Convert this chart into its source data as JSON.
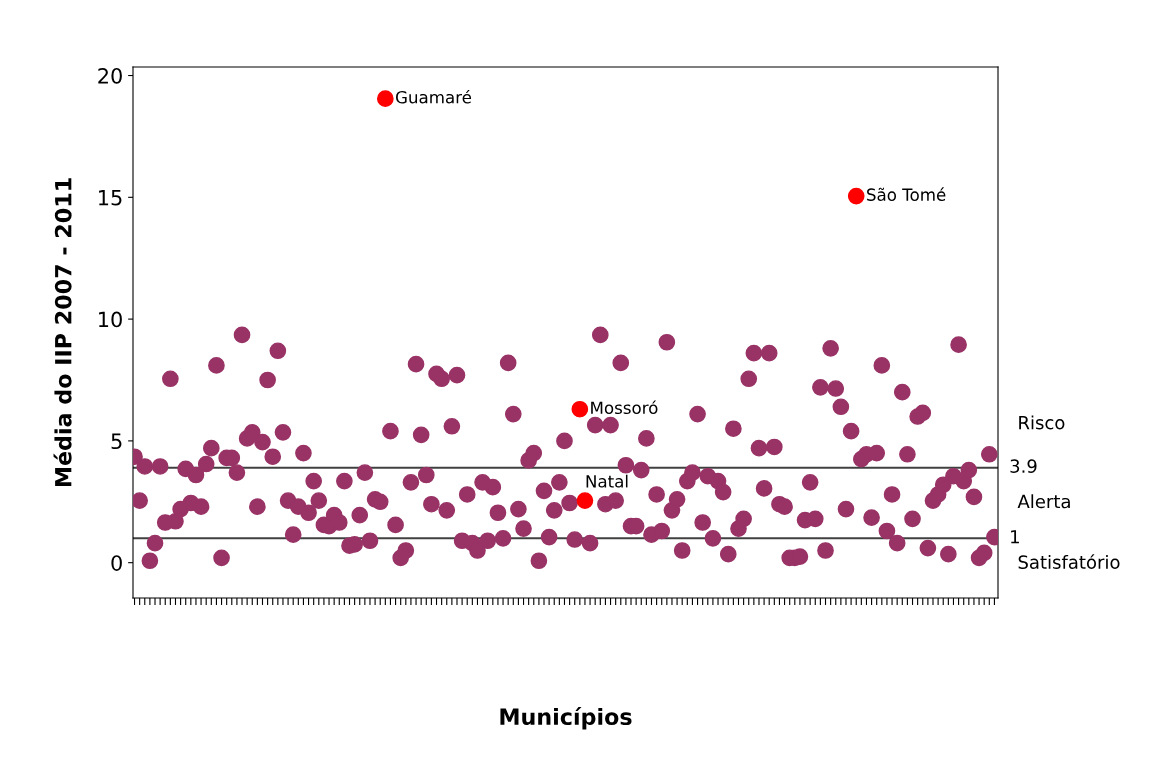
{
  "chart_data": {
    "type": "scatter",
    "xlabel": "Municípios",
    "ylabel": "Média do IIP 2007 - 2011",
    "categories": [
      null,
      null,
      null,
      null,
      null,
      null,
      null,
      null,
      null,
      null,
      null,
      null,
      null,
      null,
      null,
      null,
      null,
      null,
      null,
      null,
      null,
      null,
      null,
      null,
      null,
      null,
      null,
      null,
      null,
      null,
      null,
      null,
      null,
      null,
      null,
      null,
      null,
      null,
      null,
      null,
      null,
      null,
      null,
      null,
      null,
      null,
      null,
      null,
      null,
      null,
      null,
      null,
      null,
      null,
      null,
      null,
      null,
      null,
      null,
      null,
      null,
      null,
      null,
      null,
      null,
      null,
      null,
      null,
      null,
      null,
      null,
      null,
      null,
      null,
      null,
      null,
      null,
      null,
      null,
      null,
      null,
      null,
      null,
      null,
      null,
      null,
      null,
      null,
      null,
      null,
      null,
      null,
      null,
      null,
      null,
      null,
      null,
      null,
      null,
      null,
      null,
      null,
      null,
      null,
      null,
      null,
      null,
      null,
      null,
      null,
      null,
      null,
      null,
      null,
      null,
      null,
      null,
      null,
      null,
      null,
      null,
      null,
      null,
      null,
      null,
      null,
      null,
      null,
      null,
      null,
      null,
      null,
      null,
      null,
      null,
      null,
      null,
      null,
      null,
      null,
      null,
      null,
      null,
      null,
      null,
      null,
      null,
      null,
      null,
      null,
      null,
      null,
      null,
      null,
      null,
      null,
      null,
      null,
      null,
      null,
      null,
      null,
      null,
      null,
      null,
      null,
      null,
      null,
      null
    ],
    "values": [
      4.35,
      2.55,
      3.95,
      0.08,
      0.8,
      3.95,
      1.65,
      7.55,
      1.7,
      2.2,
      3.85,
      2.45,
      3.6,
      2.3,
      4.05,
      4.7,
      8.1,
      0.2,
      4.3,
      4.3,
      3.7,
      9.35,
      5.1,
      5.35,
      2.3,
      4.95,
      7.5,
      4.35,
      8.7,
      5.35,
      2.55,
      1.15,
      2.3,
      4.5,
      2.05,
      3.35,
      2.55,
      1.55,
      1.5,
      1.95,
      1.65,
      3.35,
      0.7,
      0.75,
      1.95,
      3.7,
      0.9,
      2.6,
      2.5,
      19.05,
      5.4,
      1.55,
      0.2,
      0.5,
      3.3,
      8.15,
      5.25,
      3.6,
      2.4,
      7.75,
      7.55,
      2.15,
      5.6,
      7.7,
      0.9,
      2.8,
      0.8,
      0.5,
      3.3,
      0.9,
      3.1,
      2.05,
      1.0,
      8.2,
      6.1,
      2.2,
      1.4,
      4.2,
      4.5,
      0.08,
      2.95,
      1.05,
      2.15,
      3.3,
      5.0,
      2.45,
      0.95,
      6.3,
      2.55,
      0.8,
      5.65,
      9.35,
      2.4,
      5.65,
      2.55,
      8.2,
      4.0,
      1.5,
      1.5,
      3.8,
      5.1,
      1.15,
      2.8,
      1.3,
      9.05,
      2.15,
      2.6,
      0.5,
      3.35,
      3.7,
      6.1,
      1.65,
      3.55,
      1.0,
      3.35,
      2.9,
      0.35,
      5.5,
      1.4,
      1.8,
      7.55,
      8.6,
      4.7,
      3.05,
      8.6,
      4.75,
      2.4,
      2.3,
      0.2,
      0.2,
      0.25,
      1.75,
      3.3,
      1.8,
      7.2,
      0.5,
      8.8,
      7.15,
      6.4,
      2.2,
      5.4,
      15.05,
      4.25,
      4.45,
      1.85,
      4.5,
      8.1,
      1.3,
      2.8,
      0.8,
      7.0,
      4.45,
      1.8,
      6.0,
      6.15,
      0.6,
      2.55,
      2.8,
      3.2,
      0.35,
      3.55,
      8.95,
      3.35,
      3.8,
      2.7,
      0.2,
      0.4,
      4.45,
      1.05
    ],
    "colors": [
      "#993366",
      "#993366",
      "#993366",
      "#993366",
      "#993366",
      "#993366",
      "#993366",
      "#993366",
      "#993366",
      "#993366",
      "#993366",
      "#993366",
      "#993366",
      "#993366",
      "#993366",
      "#993366",
      "#993366",
      "#993366",
      "#993366",
      "#993366",
      "#993366",
      "#993366",
      "#993366",
      "#993366",
      "#993366",
      "#993366",
      "#993366",
      "#993366",
      "#993366",
      "#993366",
      "#993366",
      "#993366",
      "#993366",
      "#993366",
      "#993366",
      "#993366",
      "#993366",
      "#993366",
      "#993366",
      "#993366",
      "#993366",
      "#993366",
      "#993366",
      "#993366",
      "#993366",
      "#993366",
      "#993366",
      "#993366",
      "#993366",
      "#ff0000",
      "#993366",
      "#993366",
      "#993366",
      "#993366",
      "#993366",
      "#993366",
      "#993366",
      "#993366",
      "#993366",
      "#993366",
      "#993366",
      "#993366",
      "#993366",
      "#993366",
      "#993366",
      "#993366",
      "#993366",
      "#993366",
      "#993366",
      "#993366",
      "#993366",
      "#993366",
      "#993366",
      "#993366",
      "#993366",
      "#993366",
      "#993366",
      "#993366",
      "#993366",
      "#993366",
      "#993366",
      "#993366",
      "#993366",
      "#993366",
      "#993366",
      "#993366",
      "#993366",
      "#ff0000",
      "#ff0000",
      "#993366",
      "#993366",
      "#993366",
      "#993366",
      "#993366",
      "#993366",
      "#993366",
      "#993366",
      "#993366",
      "#993366",
      "#993366",
      "#993366",
      "#993366",
      "#993366",
      "#993366",
      "#993366",
      "#993366",
      "#993366",
      "#993366",
      "#993366",
      "#993366",
      "#993366",
      "#993366",
      "#993366",
      "#993366",
      "#993366",
      "#993366",
      "#993366",
      "#993366",
      "#993366",
      "#993366",
      "#993366",
      "#993366",
      "#993366",
      "#993366",
      "#993366",
      "#993366",
      "#993366",
      "#993366",
      "#993366",
      "#993366",
      "#993366",
      "#993366",
      "#993366",
      "#993366",
      "#993366",
      "#993366",
      "#993366",
      "#993366",
      "#993366",
      "#993366",
      "#993366",
      "#ff0000",
      "#993366",
      "#993366",
      "#993366",
      "#993366",
      "#993366",
      "#993366",
      "#993366",
      "#993366",
      "#993366",
      "#993366",
      "#993366",
      "#993366",
      "#993366",
      "#993366",
      "#993366",
      "#993366",
      "#993366",
      "#993366",
      "#993366",
      "#993366",
      "#993366",
      "#993366",
      "#993366",
      "#993366",
      "#993366",
      "#993366",
      "#993366"
    ],
    "value_labels": [
      null,
      null,
      null,
      null,
      null,
      null,
      null,
      null,
      null,
      null,
      null,
      null,
      null,
      null,
      null,
      null,
      null,
      null,
      null,
      null,
      null,
      null,
      null,
      null,
      null,
      null,
      null,
      null,
      null,
      null,
      null,
      null,
      null,
      null,
      null,
      null,
      null,
      null,
      null,
      null,
      null,
      null,
      null,
      null,
      null,
      null,
      null,
      null,
      null,
      "Guamaré",
      null,
      null,
      null,
      null,
      null,
      null,
      null,
      null,
      null,
      null,
      null,
      null,
      null,
      null,
      null,
      null,
      null,
      null,
      null,
      null,
      null,
      null,
      null,
      null,
      null,
      null,
      null,
      null,
      null,
      null,
      null,
      null,
      null,
      null,
      null,
      null,
      null,
      "Mossoró",
      "Natal",
      null,
      null,
      null,
      null,
      null,
      null,
      null,
      null,
      null,
      null,
      null,
      null,
      null,
      null,
      null,
      null,
      null,
      null,
      null,
      null,
      null,
      null,
      null,
      null,
      null,
      null,
      null,
      null,
      null,
      null,
      null,
      null,
      null,
      null,
      null,
      null,
      null,
      null,
      null,
      null,
      null,
      null,
      null,
      null,
      null,
      null,
      null,
      null,
      null,
      null,
      null,
      null,
      "São Tomé",
      null,
      null,
      null,
      null,
      null,
      null,
      null,
      null,
      null,
      null,
      null,
      null,
      null,
      null,
      null,
      null,
      null,
      null,
      null,
      null,
      null,
      null,
      null,
      null,
      null,
      null,
      null
    ],
    "ylim": [
      -1.45,
      20.35
    ],
    "yticks": [
      0,
      5,
      10,
      15,
      20
    ],
    "ref_lines": [
      {
        "axis": "y",
        "value": 3.9,
        "label": "3.9",
        "color": "#404040"
      },
      {
        "axis": "y",
        "value": 1,
        "label": "1",
        "color": "#404040"
      }
    ],
    "annotations": [
      "Risco",
      "Alerta",
      "Satisfatório"
    ],
    "marker": "circle",
    "grid": false
  }
}
